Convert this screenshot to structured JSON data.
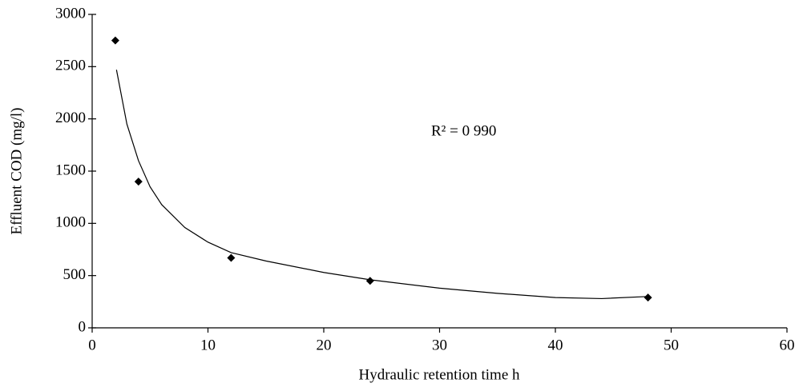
{
  "chart_data": {
    "type": "scatter",
    "xlabel": "Hydraulic retention time   h",
    "ylabel": "Effluent COD (mg/l)",
    "annotation": "R² = 0 990",
    "points": {
      "x": [
        2,
        4,
        12,
        24,
        48
      ],
      "values": [
        2750,
        1400,
        670,
        450,
        290
      ],
      "color": "#000000"
    },
    "trend": {
      "x": [
        2.1,
        3,
        4,
        5,
        6,
        8,
        10,
        12,
        15,
        20,
        24,
        30,
        35,
        40,
        44,
        48
      ],
      "values": [
        2470,
        1950,
        1600,
        1350,
        1180,
        960,
        820,
        720,
        640,
        530,
        460,
        380,
        330,
        290,
        280,
        300
      ],
      "color": "#000000"
    },
    "xlim": [
      0,
      60
    ],
    "xticks": [
      0,
      10,
      20,
      30,
      40,
      50,
      60
    ],
    "ylim": [
      0,
      3000
    ],
    "yticks": [
      0,
      500,
      1000,
      1500,
      2000,
      2500,
      3000
    ]
  }
}
